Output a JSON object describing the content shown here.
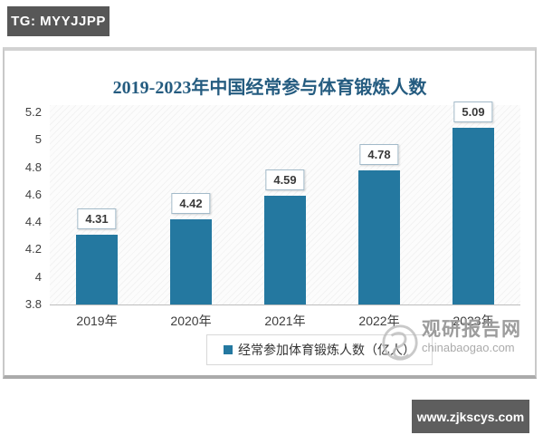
{
  "badges": {
    "top_left": "TG: MYYJJPP",
    "bottom_right": "www.zjkscys.com"
  },
  "chart_data": {
    "type": "bar",
    "title": "2019-2023年中国经常参与体育锻炼人数",
    "categories": [
      "2019年",
      "2020年",
      "2021年",
      "2022年",
      "2023年"
    ],
    "values": [
      4.31,
      4.42,
      4.59,
      4.78,
      5.09
    ],
    "legend": "经常参加体育锻炼人数（亿人）",
    "legend_position": "bottom",
    "ylim": [
      3.8,
      5.2
    ],
    "yticks": [
      "5.2",
      "5",
      "4.8",
      "4.6",
      "4.4",
      "4.2",
      "4",
      "3.8"
    ],
    "grid": false,
    "bar_color": "#2478A0",
    "title_color": "#255C80",
    "label_box_border_color": "#a3bac9"
  },
  "watermark": {
    "name": "观研报告网",
    "domain": "chinabaogao.com"
  }
}
